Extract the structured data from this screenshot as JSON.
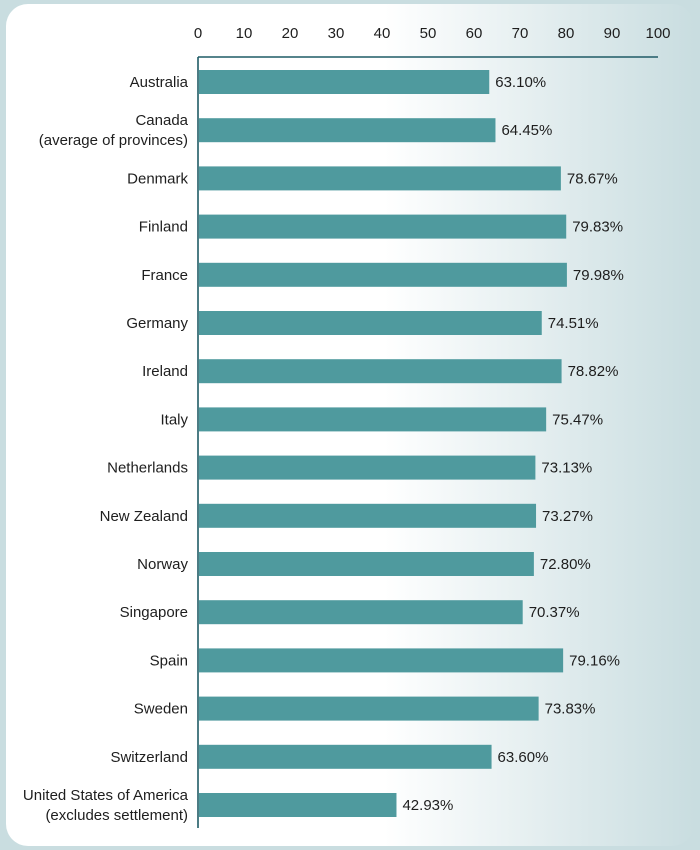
{
  "chart_data": {
    "type": "bar",
    "orientation": "horizontal",
    "title": "",
    "xlabel": "",
    "ylabel": "",
    "xlim": [
      0,
      100
    ],
    "xticks": [
      "0",
      "10",
      "20",
      "30",
      "40",
      "50",
      "60",
      "70",
      "80",
      "90",
      "100"
    ],
    "categories": [
      "Australia",
      "Canada\n(average of provinces)",
      "Denmark",
      "Finland",
      "France",
      "Germany",
      "Ireland",
      "Italy",
      "Netherlands",
      "New Zealand",
      "Norway",
      "Singapore",
      "Spain",
      "Sweden",
      "Switzerland",
      "United States of America\n(excludes settlement)"
    ],
    "values": [
      63.1,
      64.45,
      78.67,
      79.83,
      79.98,
      74.51,
      78.82,
      75.47,
      73.13,
      73.27,
      72.8,
      70.37,
      79.16,
      73.83,
      63.6,
      42.93
    ],
    "value_labels": [
      "63.10%",
      "64.45%",
      "78.67%",
      "79.83%",
      "79.98%",
      "74.51%",
      "78.82%",
      "75.47%",
      "73.13%",
      "73.27%",
      "72.80%",
      "70.37%",
      "79.16%",
      "73.83%",
      "63.60%",
      "42.93%"
    ],
    "grid": false,
    "legend": "none",
    "colors": {
      "bar": "#4f9a9e",
      "axis": "#1f5b66",
      "panel_light": "#ffffff",
      "panel_dark": "#c9dde0",
      "outer_bg": "#c9dde0"
    }
  }
}
